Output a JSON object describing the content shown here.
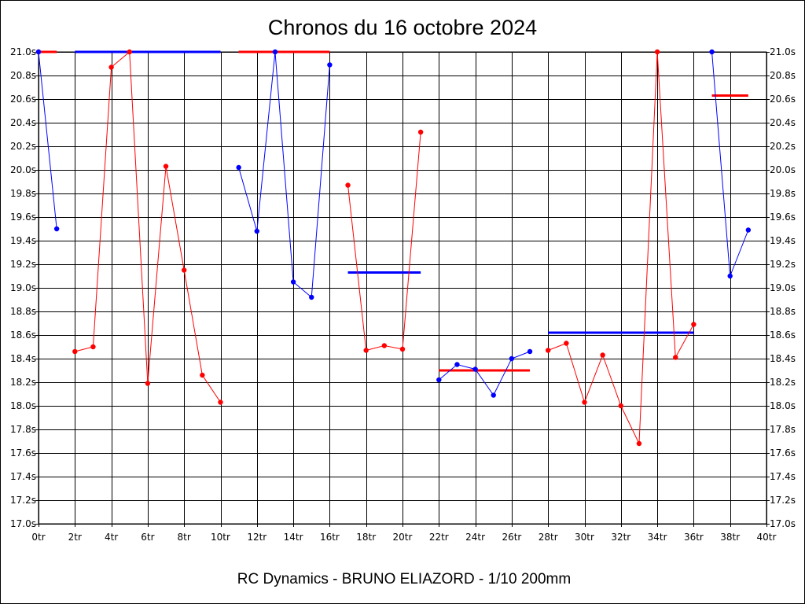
{
  "chart_data": {
    "type": "line",
    "title": "Chronos du 16 octobre 2024",
    "subtitle": "RC Dynamics - BRUNO ELIAZORD - 1/10 200mm",
    "xlim": [
      0,
      40
    ],
    "ylim": [
      17.0,
      21.0
    ],
    "x_ticks": [
      0,
      2,
      4,
      6,
      8,
      10,
      12,
      14,
      16,
      18,
      20,
      22,
      24,
      26,
      28,
      30,
      32,
      34,
      36,
      38,
      40
    ],
    "y_ticks": [
      17.0,
      17.2,
      17.4,
      17.6,
      17.8,
      18.0,
      18.2,
      18.4,
      18.6,
      18.8,
      19.0,
      19.2,
      19.4,
      19.6,
      19.8,
      20.0,
      20.2,
      20.4,
      20.6,
      20.8,
      21.0
    ],
    "x_tick_suffix": "tr",
    "y_tick_suffix": "s",
    "y_axis_sides": "both",
    "grid": true,
    "colors": {
      "red": "#ff0000",
      "blue": "#0000ff"
    },
    "series": [
      {
        "color": "red",
        "points": [
          [
            0,
            21.0
          ]
        ],
        "mean": 21.0,
        "mean_range": [
          0,
          1
        ]
      },
      {
        "color": "blue",
        "points": [
          [
            0,
            21.0
          ],
          [
            1,
            19.5
          ]
        ],
        "mean": 21.0,
        "mean_range": [
          2,
          10
        ]
      },
      {
        "color": "red",
        "points": [
          [
            2,
            18.46
          ],
          [
            3,
            18.5
          ],
          [
            4,
            20.87
          ],
          [
            5,
            21.0
          ],
          [
            6,
            18.19
          ],
          [
            7,
            20.03
          ],
          [
            8,
            19.15
          ],
          [
            9,
            18.26
          ],
          [
            10,
            18.03
          ]
        ],
        "mean": 21.0,
        "mean_range": [
          11,
          16
        ]
      },
      {
        "color": "blue",
        "points": [
          [
            11,
            20.02
          ],
          [
            12,
            19.48
          ],
          [
            13,
            21.0
          ],
          [
            14,
            19.05
          ],
          [
            15,
            18.92
          ],
          [
            16,
            20.89
          ]
        ],
        "mean": 19.13,
        "mean_range": [
          17,
          21
        ]
      },
      {
        "color": "red",
        "points": [
          [
            17,
            19.87
          ],
          [
            18,
            18.47
          ],
          [
            19,
            18.51
          ],
          [
            20,
            18.48
          ],
          [
            21,
            20.32
          ]
        ],
        "mean": 18.3,
        "mean_range": [
          22,
          27
        ]
      },
      {
        "color": "blue",
        "points": [
          [
            22,
            18.22
          ],
          [
            23,
            18.35
          ],
          [
            24,
            18.31
          ],
          [
            25,
            18.09
          ],
          [
            26,
            18.4
          ],
          [
            27,
            18.46
          ]
        ],
        "mean": 18.62,
        "mean_range": [
          28,
          36
        ]
      },
      {
        "color": "red",
        "points": [
          [
            28,
            18.47
          ],
          [
            29,
            18.53
          ],
          [
            30,
            18.03
          ],
          [
            31,
            18.43
          ],
          [
            32,
            18.0
          ],
          [
            33,
            17.68
          ],
          [
            34,
            21.0
          ],
          [
            35,
            18.41
          ],
          [
            36,
            18.69
          ]
        ],
        "mean": 20.63,
        "mean_range": [
          37,
          39
        ]
      },
      {
        "color": "blue",
        "points": [
          [
            37,
            21.0
          ],
          [
            38,
            19.1
          ],
          [
            39,
            19.49
          ]
        ]
      }
    ]
  }
}
